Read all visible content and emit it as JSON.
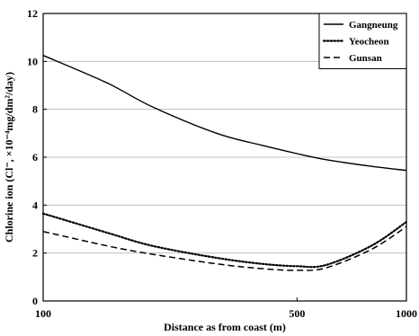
{
  "chart_data": {
    "type": "line",
    "x_scale": "log",
    "xlim": [
      100,
      1000
    ],
    "ylim": [
      0,
      12
    ],
    "grid": {
      "horizontal": true,
      "vertical": false
    },
    "legend_position": "top-right",
    "xlabel": "Distance as from coast (m)",
    "ylabel": "Chlorine ion (Cl⁻, ×10⁻⁴mg/dm²/day)",
    "x_ticks": [
      100,
      500,
      1000
    ],
    "x_tick_labels": [
      "100",
      "500",
      "1000"
    ],
    "y_ticks": [
      0,
      2,
      4,
      6,
      8,
      10,
      12
    ],
    "y_tick_labels": [
      "0",
      "2",
      "4",
      "6",
      "8",
      "10",
      "12"
    ],
    "series": [
      {
        "name": "Gangneung",
        "style": "solid",
        "color": "#000000",
        "x": [
          100,
          150,
          200,
          300,
          400,
          500,
          600,
          800,
          1000
        ],
        "y": [
          10.25,
          9.1,
          8.1,
          7.0,
          6.5,
          6.15,
          5.9,
          5.62,
          5.45
        ]
      },
      {
        "name": "Yeocheon",
        "style": "dotted",
        "color": "#000000",
        "x": [
          100,
          150,
          200,
          300,
          400,
          500,
          600,
          800,
          1000
        ],
        "y": [
          3.65,
          2.85,
          2.3,
          1.8,
          1.55,
          1.45,
          1.5,
          2.3,
          3.3
        ]
      },
      {
        "name": "Gunsan",
        "style": "dashed",
        "color": "#000000",
        "x": [
          100,
          150,
          200,
          300,
          400,
          500,
          600,
          800,
          1000
        ],
        "y": [
          2.9,
          2.3,
          1.95,
          1.55,
          1.35,
          1.28,
          1.38,
          2.15,
          3.1
        ]
      }
    ]
  }
}
